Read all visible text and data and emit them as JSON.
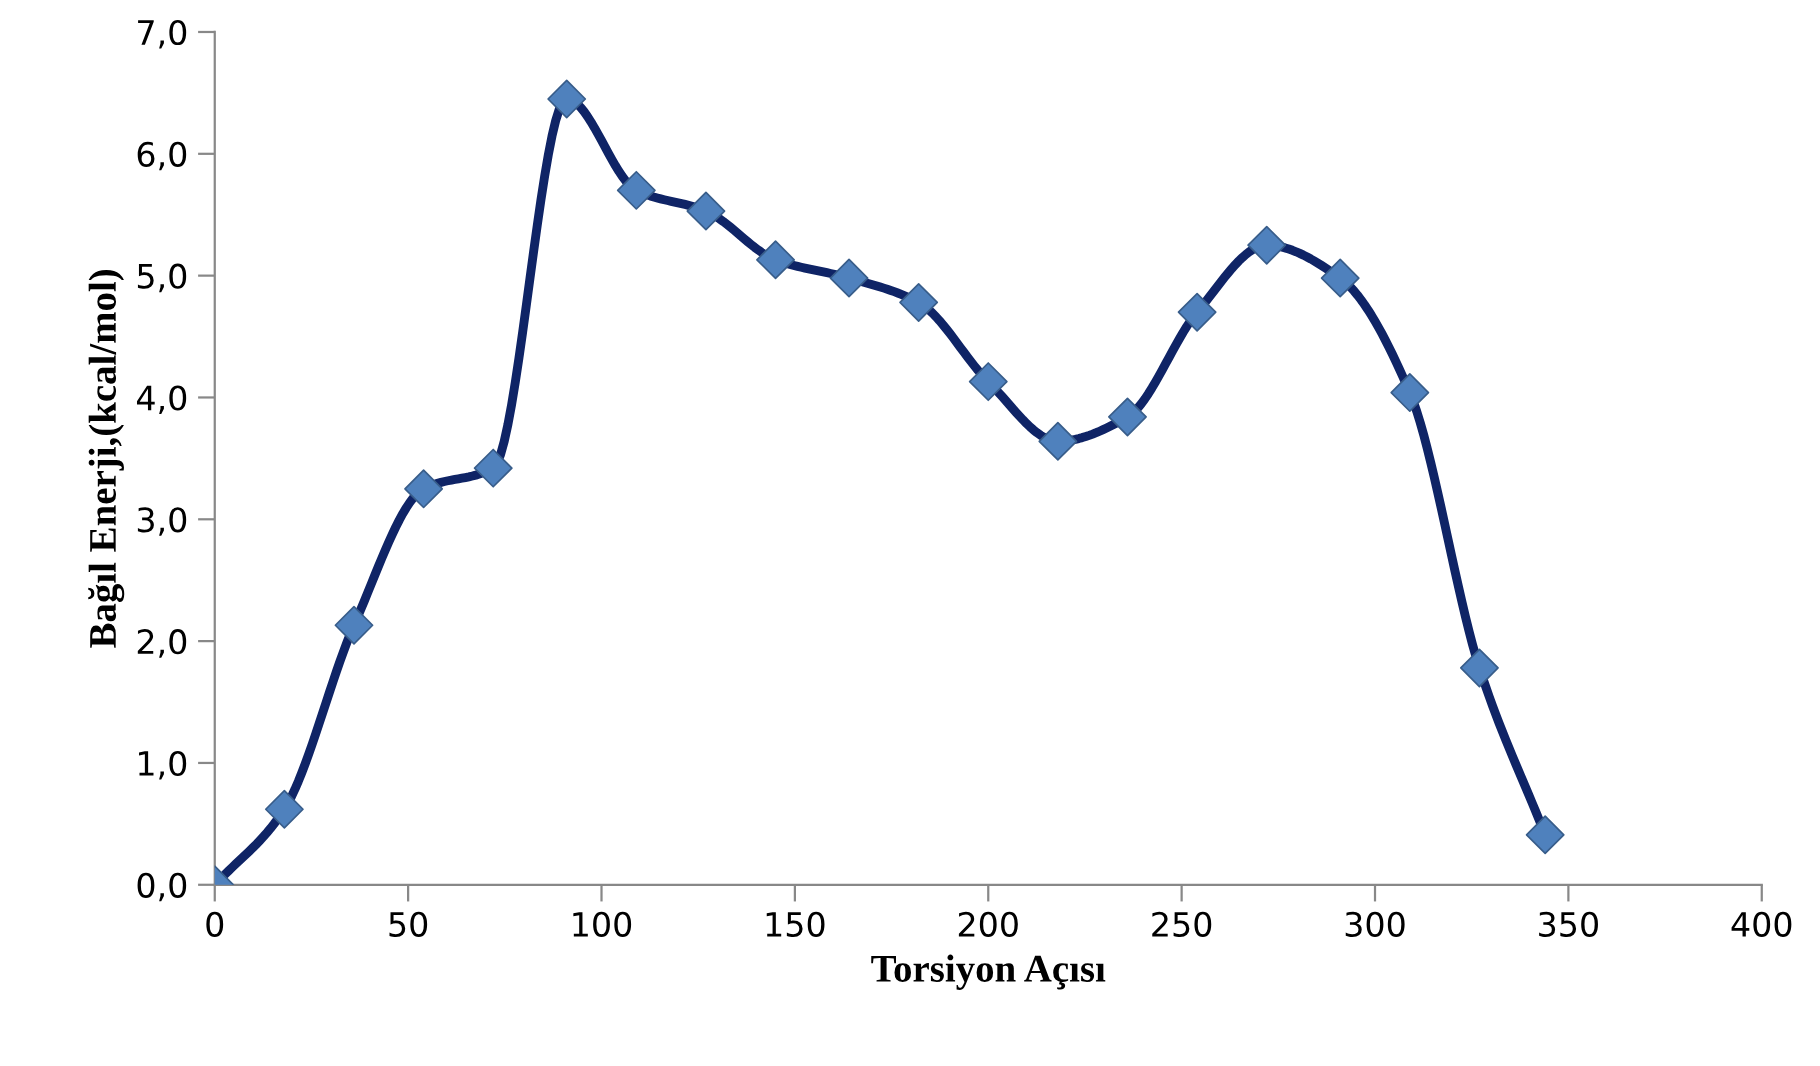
{
  "chart_data": {
    "type": "line",
    "xlabel": "Torsiyon Açısı",
    "ylabel": "Bağıl Enerji,(kcal/mol)",
    "x": [
      0,
      18,
      36,
      54,
      72,
      91,
      109,
      127,
      145,
      164,
      182,
      200,
      218,
      236,
      254,
      272,
      291,
      309,
      327,
      344
    ],
    "series": [
      {
        "color": "#0f2466",
        "colors": [
          "#4f81bd",
          "#4f81bd",
          "#4f81bd",
          "#4f81bd",
          "#4f81bd",
          "#4f81bd",
          "#4f81bd",
          "#4f81bd",
          "#4f81bd",
          "#4f81bd",
          "#4f81bd",
          "#4f81bd",
          "#4f81bd",
          "#4f81bd",
          "#4f81bd",
          "#4f81bd",
          "#4f81bd",
          "#4f81bd",
          "#4f81bd",
          "#4f81bd"
        ],
        "values": [
          0,
          0.62,
          2.13,
          3.25,
          3.42,
          6.45,
          5.7,
          5.53,
          5.13,
          4.98,
          4.78,
          4.13,
          3.64,
          3.84,
          4.7,
          5.25,
          4.98,
          4.04,
          1.78,
          0.41
        ]
      }
    ],
    "marker": "diamond",
    "line_style": "solid",
    "grid": false,
    "legend": false,
    "xlim": [
      0,
      400
    ],
    "xticks": [
      0,
      50,
      100,
      150,
      200,
      250,
      300,
      350,
      400
    ],
    "ylim": [
      0,
      7
    ],
    "yticks": [
      {
        "value": 0,
        "label": "0,0"
      },
      {
        "value": 1,
        "label": "1,0"
      },
      {
        "value": 2,
        "label": "2,0"
      },
      {
        "value": 3,
        "label": "3,0"
      },
      {
        "value": 4,
        "label": "4,0"
      },
      {
        "value": 5,
        "label": "5,0"
      },
      {
        "value": 6,
        "label": "6,0"
      },
      {
        "value": 7,
        "label": "7,0"
      }
    ]
  }
}
